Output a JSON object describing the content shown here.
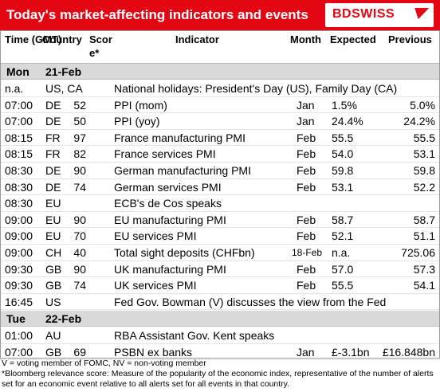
{
  "header": {
    "title": "Today's market-affecting indicators and events",
    "brand": "BDSWISS"
  },
  "columns": {
    "time": "Time (GMT)",
    "country": "Country",
    "score": "Score*",
    "indicator": "Indicator",
    "month": "Month",
    "expected": "Expected",
    "previous": "Previous"
  },
  "days": [
    {
      "name": "Mon",
      "date": "21-Feb"
    },
    {
      "name": "Tue",
      "date": "22-Feb"
    }
  ],
  "rows_mon": [
    {
      "time": "n.a.",
      "country": "US, CA",
      "score": "",
      "indicator": "National holidays: President's Day (US), Family Day (CA)",
      "month": "",
      "expected": "",
      "previous": ""
    },
    {
      "time": "07:00",
      "country": "DE",
      "score": "52",
      "indicator": "PPI (mom)",
      "month": "Jan",
      "expected": "1.5%",
      "previous": "5.0%"
    },
    {
      "time": "07:00",
      "country": "DE",
      "score": "50",
      "indicator": "PPI (yoy)",
      "month": "Jan",
      "expected": "24.4%",
      "previous": "24.2%"
    },
    {
      "time": "08:15",
      "country": "FR",
      "score": "97",
      "indicator": "France manufacturing PMI",
      "month": "Feb",
      "expected": "55.5",
      "previous": "55.5"
    },
    {
      "time": "08:15",
      "country": "FR",
      "score": "82",
      "indicator": "France services PMI",
      "month": "Feb",
      "expected": "54.0",
      "previous": "53.1"
    },
    {
      "time": "08:30",
      "country": "DE",
      "score": "90",
      "indicator": "German manufacturing PMI",
      "month": "Feb",
      "expected": "59.8",
      "previous": "59.8"
    },
    {
      "time": "08:30",
      "country": "DE",
      "score": "74",
      "indicator": "German services PMI",
      "month": "Feb",
      "expected": "53.1",
      "previous": "52.2"
    },
    {
      "time": "08:30",
      "country": "EU",
      "score": "",
      "indicator": "ECB's de Cos speaks",
      "month": "",
      "expected": "",
      "previous": ""
    },
    {
      "time": "09:00",
      "country": "EU",
      "score": "90",
      "indicator": "EU manufacturing PMI",
      "month": "Feb",
      "expected": "58.7",
      "previous": "58.7"
    },
    {
      "time": "09:00",
      "country": "EU",
      "score": "70",
      "indicator": "EU services PMI",
      "month": "Feb",
      "expected": "52.1",
      "previous": "51.1"
    },
    {
      "time": "09:00",
      "country": "CH",
      "score": "40",
      "indicator": "Total sight deposits (CHFbn)",
      "month": "18-Feb",
      "expected": "n.a.",
      "previous": "725.06"
    },
    {
      "time": "09:30",
      "country": "GB",
      "score": "90",
      "indicator": "UK manufacturing PMI",
      "month": "Feb",
      "expected": "57.0",
      "previous": "57.3"
    },
    {
      "time": "09:30",
      "country": "GB",
      "score": "74",
      "indicator": "UK services PMI",
      "month": "Feb",
      "expected": "55.5",
      "previous": "54.1"
    },
    {
      "time": "16:45",
      "country": "US",
      "score": "",
      "indicator": "Fed Gov. Bowman (V) discusses the view from the Fed",
      "month": "",
      "expected": "",
      "previous": ""
    }
  ],
  "rows_tue": [
    {
      "time": "01:00",
      "country": "AU",
      "score": "",
      "indicator": "RBA Assistant Gov. Kent speaks",
      "month": "",
      "expected": "",
      "previous": ""
    },
    {
      "time": "07:00",
      "country": "GB",
      "score": "69",
      "indicator": "PSBN ex banks",
      "month": "Jan",
      "expected": "£-3.1bn",
      "previous": "£16.848bn"
    }
  ],
  "footnotes": {
    "line1": "V = voting member of FOMC, NV = non-voting member",
    "line2": "*Bloomberg relevance score:  Measure of the popularity of the economic index, representative of the number of alerts set for an economic event relative to all alerts set for all events in that country."
  }
}
